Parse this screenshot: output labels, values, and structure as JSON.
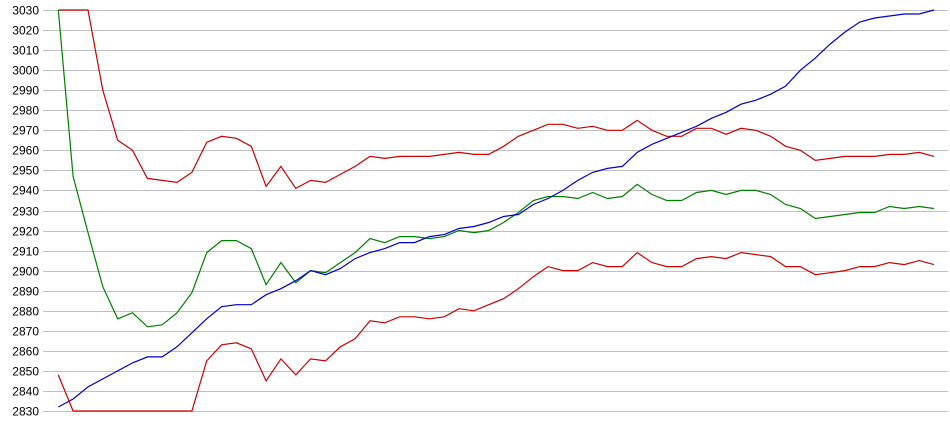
{
  "chart_data": {
    "type": "line",
    "title": "",
    "xlabel": "",
    "ylabel": "",
    "ylim": [
      2830,
      3030
    ],
    "y_ticks": [
      3030,
      3020,
      3010,
      3000,
      2990,
      2980,
      2970,
      2960,
      2950,
      2940,
      2930,
      2920,
      2910,
      2900,
      2890,
      2880,
      2870,
      2860,
      2850,
      2840,
      2830
    ],
    "grid": "horizontal",
    "legend": "none",
    "x_count": 60,
    "series": [
      {
        "color": "#cc0000",
        "values": [
          3030,
          3030,
          3030,
          2990,
          2965,
          2960,
          2946,
          2945,
          2944,
          2949,
          2964,
          2967,
          2966,
          2962,
          2942,
          2952,
          2941,
          2945,
          2944,
          2948,
          2952,
          2957,
          2956,
          2957,
          2957,
          2957,
          2958,
          2959,
          2958,
          2958,
          2962,
          2967,
          2970,
          2973,
          2973,
          2971,
          2972,
          2970,
          2970,
          2975,
          2970,
          2967,
          2967,
          2971,
          2971,
          2968,
          2971,
          2970,
          2967,
          2962,
          2960,
          2955,
          2956,
          2957,
          2957,
          2957,
          2958,
          2958,
          2959,
          2957
        ]
      },
      {
        "color": "#008000",
        "values": [
          3030,
          2947,
          2919,
          2892,
          2876,
          2879,
          2872,
          2873,
          2879,
          2889,
          2909,
          2915,
          2915,
          2911,
          2893,
          2904,
          2894,
          2900,
          2899,
          2904,
          2909,
          2916,
          2914,
          2917,
          2917,
          2916,
          2917,
          2920,
          2919,
          2920,
          2924,
          2929,
          2935,
          2937,
          2937,
          2936,
          2939,
          2936,
          2937,
          2943,
          2938,
          2935,
          2935,
          2939,
          2940,
          2938,
          2940,
          2940,
          2938,
          2933,
          2931,
          2926,
          2927,
          2928,
          2929,
          2929,
          2932,
          2931,
          2932,
          2931
        ]
      },
      {
        "color": "#0000cc",
        "values": [
          2832,
          2836,
          2842,
          2846,
          2850,
          2854,
          2857,
          2857,
          2862,
          2869,
          2876,
          2882,
          2883,
          2883,
          2888,
          2891,
          2895,
          2900,
          2898,
          2901,
          2906,
          2909,
          2911,
          2914,
          2914,
          2917,
          2918,
          2921,
          2922,
          2924,
          2927,
          2928,
          2933,
          2936,
          2940,
          2945,
          2949,
          2951,
          2952,
          2959,
          2963,
          2966,
          2969,
          2972,
          2976,
          2979,
          2983,
          2985,
          2988,
          2992,
          3000,
          3006,
          3013,
          3019,
          3024,
          3026,
          3027,
          3028,
          3028,
          3030
        ]
      },
      {
        "color": "#cc0000",
        "values": [
          2848,
          2830,
          2830,
          2830,
          2830,
          2830,
          2830,
          2830,
          2830,
          2830,
          2855,
          2863,
          2864,
          2861,
          2845,
          2856,
          2848,
          2856,
          2855,
          2862,
          2866,
          2875,
          2874,
          2877,
          2877,
          2876,
          2877,
          2881,
          2880,
          2883,
          2886,
          2891,
          2897,
          2902,
          2900,
          2900,
          2904,
          2902,
          2902,
          2909,
          2904,
          2902,
          2902,
          2906,
          2907,
          2906,
          2909,
          2908,
          2907,
          2902,
          2902,
          2898,
          2899,
          2900,
          2902,
          2902,
          2904,
          2903,
          2905,
          2903
        ]
      }
    ]
  }
}
